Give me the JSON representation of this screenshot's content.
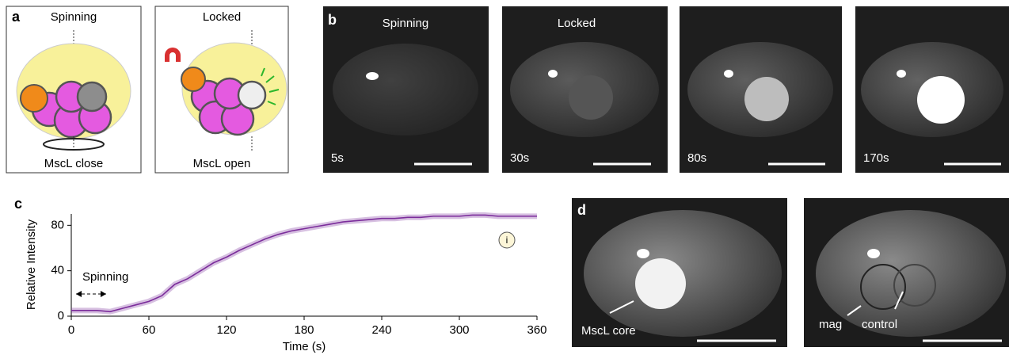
{
  "panel_a": {
    "label": "a",
    "left": {
      "top": "Spinning",
      "bottom": "MscL close"
    },
    "right": {
      "top": "Locked",
      "bottom": "MscL open"
    }
  },
  "panel_b": {
    "label": "b",
    "states": [
      "Spinning",
      "Locked"
    ],
    "frames": [
      "5s",
      "30s",
      "80s",
      "170s"
    ]
  },
  "chart_data": {
    "type": "line",
    "label": "c",
    "xlabel": "Time (s)",
    "ylabel": "Relative Intensity",
    "x": [
      0,
      10,
      20,
      30,
      40,
      50,
      60,
      70,
      80,
      90,
      100,
      110,
      120,
      130,
      140,
      150,
      160,
      170,
      180,
      190,
      200,
      210,
      220,
      230,
      240,
      250,
      260,
      270,
      280,
      290,
      300,
      310,
      320,
      330,
      340,
      350,
      360
    ],
    "values": [
      5,
      5,
      5,
      4,
      7,
      10,
      13,
      18,
      28,
      33,
      40,
      47,
      52,
      58,
      63,
      68,
      72,
      75,
      77,
      79,
      81,
      83,
      84,
      85,
      86,
      86,
      87,
      87,
      88,
      88,
      88,
      89,
      89,
      88,
      88,
      88,
      88
    ],
    "color": "#7b2d9b",
    "xlim": [
      0,
      360
    ],
    "xticks": [
      0,
      60,
      120,
      180,
      240,
      300,
      360
    ],
    "ylim": [
      0,
      90
    ],
    "yticks": [
      0,
      40,
      80
    ],
    "annotations": [
      "Spinning",
      "i"
    ]
  },
  "panel_d": {
    "label": "d",
    "left": [
      "MscL core"
    ],
    "right": [
      "mag",
      "control"
    ]
  }
}
